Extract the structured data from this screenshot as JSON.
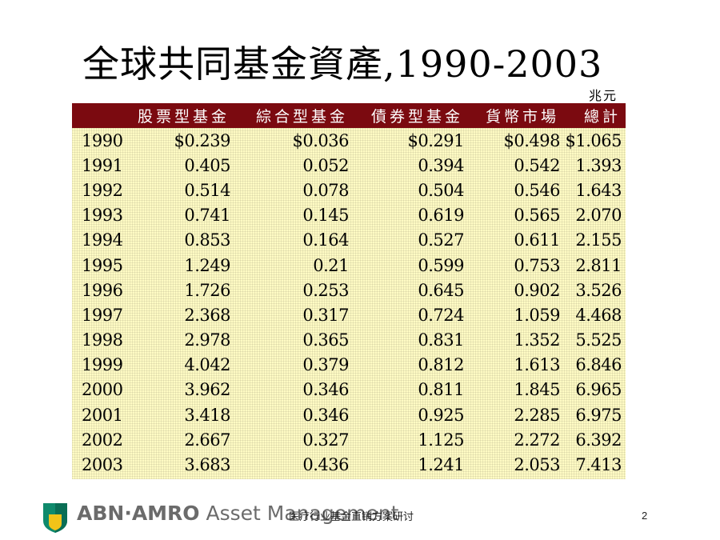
{
  "title": "全球共同基金資產,1990-2003",
  "unit": "兆元",
  "table": {
    "headers": [
      "",
      "股票型基金",
      "綜合型基金",
      "債券型基金",
      "貨幣市場",
      "總計"
    ],
    "rows": [
      [
        "1990",
        "$0.239",
        "$0.036",
        "$0.291",
        "$0.498",
        "$1.065"
      ],
      [
        "1991",
        "0.405",
        "0.052",
        "0.394",
        "0.542",
        "1.393"
      ],
      [
        "1992",
        "0.514",
        "0.078",
        "0.504",
        "0.546",
        "1.643"
      ],
      [
        "1993",
        "0.741",
        "0.145",
        "0.619",
        "0.565",
        "2.070"
      ],
      [
        "1994",
        "0.853",
        "0.164",
        "0.527",
        "0.611",
        "2.155"
      ],
      [
        "1995",
        "1.249",
        "0.21",
        "0.599",
        "0.753",
        "2.811"
      ],
      [
        "1996",
        "1.726",
        "0.253",
        "0.645",
        "0.902",
        "3.526"
      ],
      [
        "1997",
        "2.368",
        "0.317",
        "0.724",
        "1.059",
        "4.468"
      ],
      [
        "1998",
        "2.978",
        "0.365",
        "0.831",
        "1.352",
        "5.525"
      ],
      [
        "1999",
        "4.042",
        "0.379",
        "0.812",
        "1.613",
        "6.846"
      ],
      [
        "2000",
        "3.962",
        "0.346",
        "0.811",
        "1.845",
        "6.965"
      ],
      [
        "2001",
        "3.418",
        "0.346",
        "0.925",
        "2.285",
        "6.975"
      ],
      [
        "2002",
        "2.667",
        "0.327",
        "1.125",
        "2.272",
        "6.392"
      ],
      [
        "2003",
        "3.683",
        "0.436",
        "1.241",
        "2.053",
        "7.413"
      ]
    ]
  },
  "footer": {
    "brand_bold": "ABN·AMRO",
    "brand_rest": " Asset Management",
    "text": "医疗行业基金直销方案研讨",
    "page": "2"
  },
  "colors": {
    "header_bg": "#7b0a10",
    "table_bg": "#fffbc4",
    "logo_green": "#0f8a6c",
    "logo_yellow": "#f2c318"
  }
}
